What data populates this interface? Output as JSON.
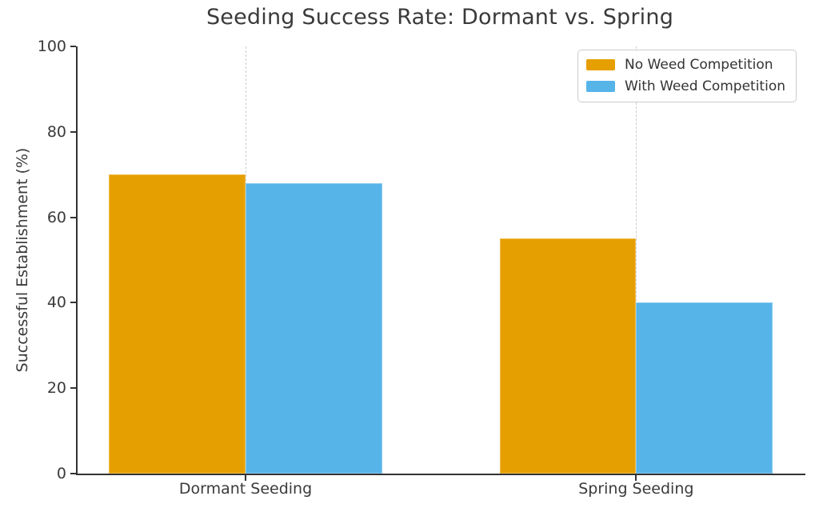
{
  "figure": {
    "background": "#ffffff"
  },
  "chart_data": {
    "type": "bar",
    "title": "Seeding Success Rate: Dormant vs. Spring",
    "categories": [
      "Dormant Seeding",
      "Spring Seeding"
    ],
    "series": [
      {
        "name": "No Weed Competition",
        "color": "#E69F00",
        "values": [
          70,
          55
        ]
      },
      {
        "name": "With Weed Competition",
        "color": "#56B4E9",
        "values": [
          68,
          40
        ]
      }
    ],
    "xlabel": "",
    "ylabel": "Successful Establishment (%)",
    "ylim": [
      0,
      100
    ],
    "yticks": [
      0,
      20,
      40,
      60,
      80,
      100
    ],
    "grid": {
      "vertical_dashed_at_category_centers": true,
      "color": "#cccccc"
    },
    "legend": {
      "position": "upper-right",
      "border_color": "#cccccc",
      "background": "#ffffff"
    },
    "axis_color": "#333333",
    "text_color": "#3a3a3a"
  }
}
